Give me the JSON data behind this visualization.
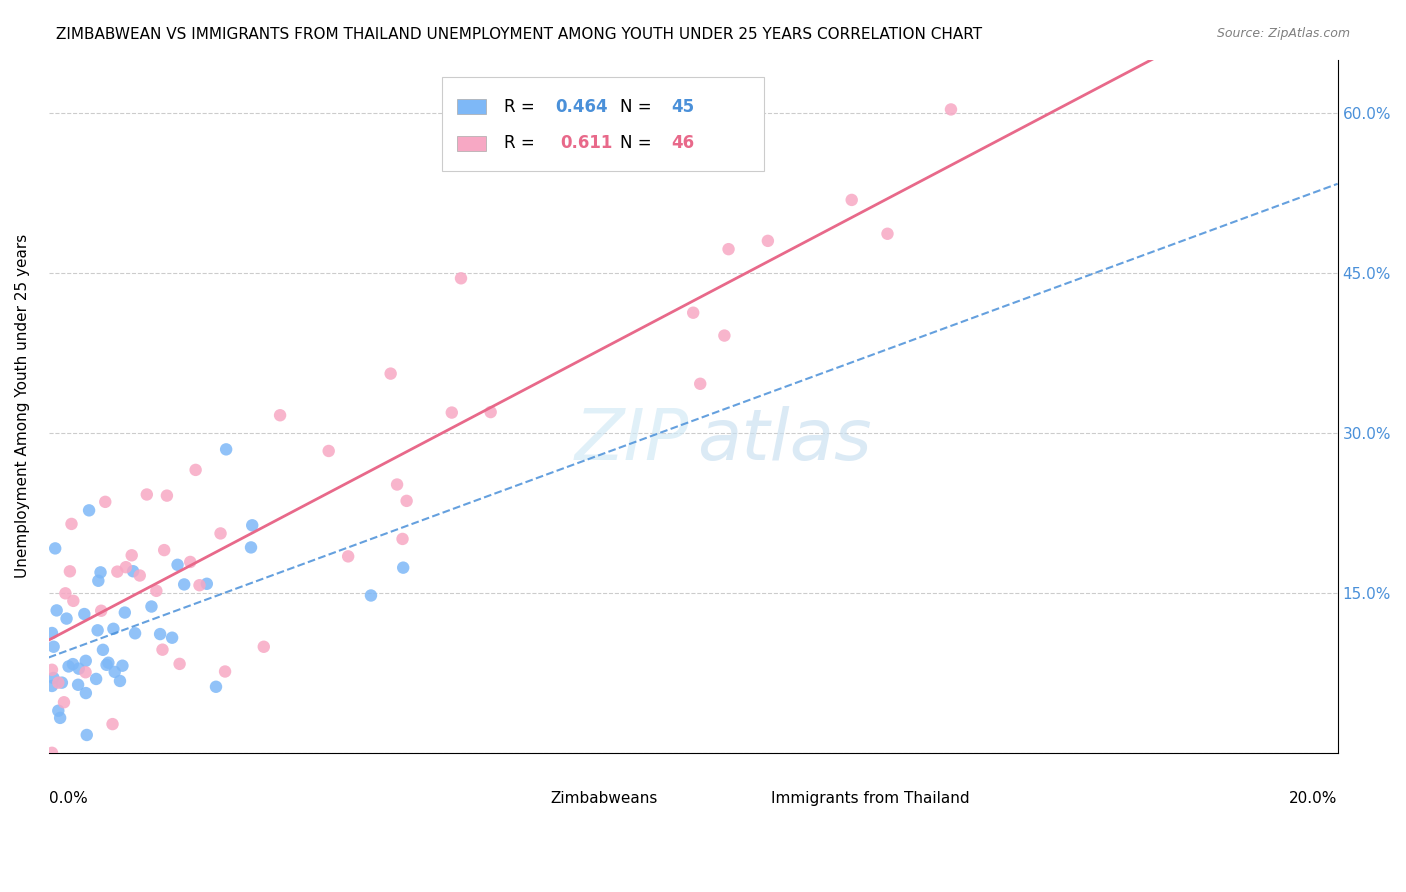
{
  "title": "ZIMBABWEAN VS IMMIGRANTS FROM THAILAND UNEMPLOYMENT AMONG YOUTH UNDER 25 YEARS CORRELATION CHART",
  "source": "Source: ZipAtlas.com",
  "ylabel": "Unemployment Among Youth under 25 years",
  "xlim": [
    0.0,
    0.2
  ],
  "ylim": [
    0.0,
    0.65
  ],
  "zim_color": "#7EB8F7",
  "thai_color": "#F7A8C4",
  "zim_line_color": "#4A90D9",
  "thai_line_color": "#E8698A",
  "zim_R": 0.464,
  "zim_N": 45,
  "thai_R": 0.611,
  "thai_N": 46,
  "y_tick_positions": [
    0.0,
    0.15,
    0.3,
    0.45,
    0.6
  ],
  "y_tick_labels": [
    "",
    "15.0%",
    "30.0%",
    "45.0%",
    "60.0%"
  ]
}
